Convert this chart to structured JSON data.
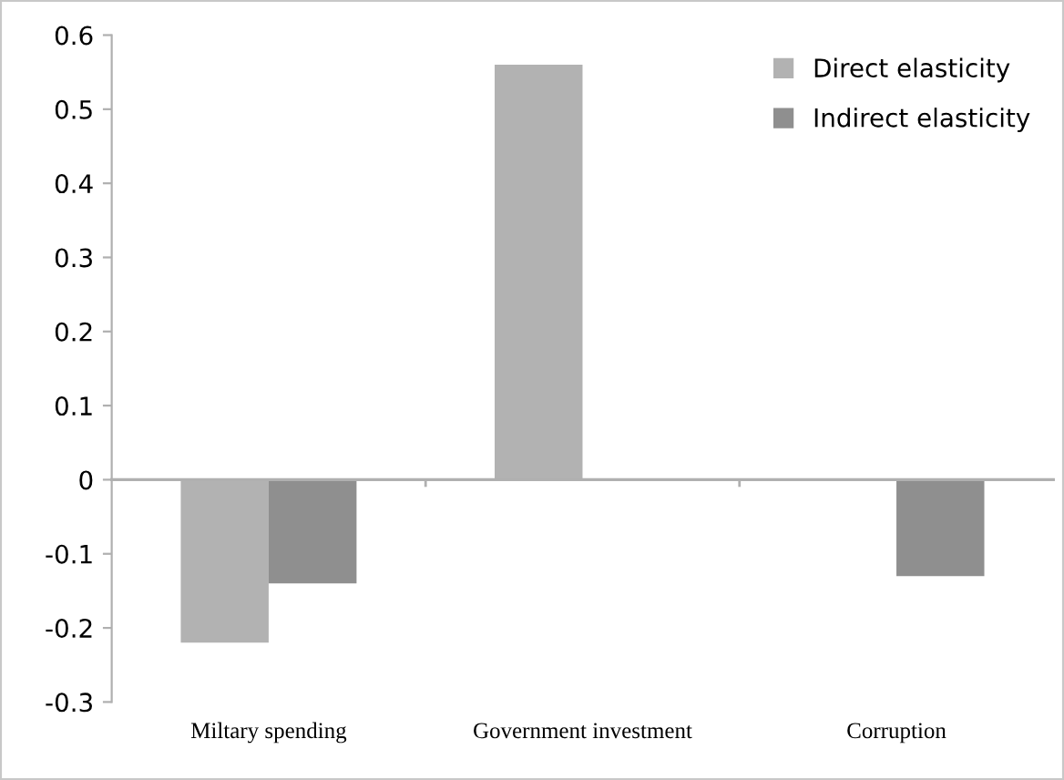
{
  "chart_data": {
    "type": "bar",
    "categories": [
      "Miltary spending",
      "Government investment",
      "Corruption"
    ],
    "series": [
      {
        "name": "Direct elasticity",
        "color": "#b2b2b2",
        "values": [
          -0.22,
          0.56,
          null
        ]
      },
      {
        "name": "Indirect elasticity",
        "color": "#8f8f8f",
        "values": [
          -0.14,
          null,
          -0.13
        ]
      }
    ],
    "ylim": [
      -0.3,
      0.6
    ],
    "yticks": [
      -0.3,
      -0.2,
      -0.1,
      0,
      0.1,
      0.2,
      0.3,
      0.4,
      0.5,
      0.6
    ],
    "legend": "top right"
  }
}
